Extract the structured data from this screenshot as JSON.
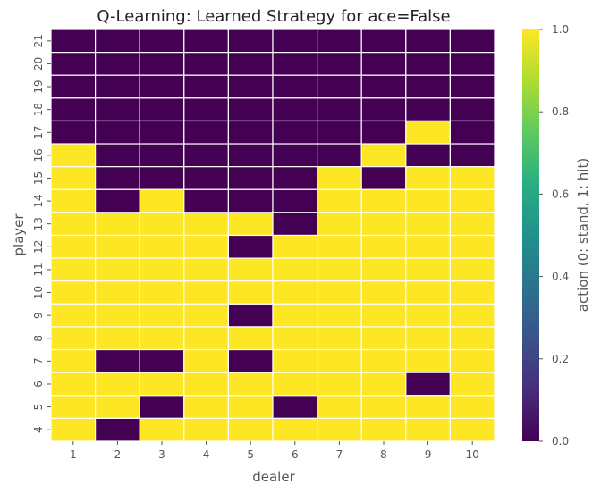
{
  "chart_data": {
    "type": "heatmap",
    "title": "Q-Learning: Learned Strategy for ace=False",
    "xlabel": "dealer",
    "ylabel": "player",
    "colorbar_label": "action (0: stand, 1: hit)",
    "colormap": "viridis",
    "colors": {
      "low": "#440154",
      "high": "#fde725",
      "grid_line": "#ffffff"
    },
    "x": [
      1,
      2,
      3,
      4,
      5,
      6,
      7,
      8,
      9,
      10
    ],
    "y": [
      21,
      20,
      19,
      18,
      17,
      16,
      15,
      14,
      13,
      12,
      11,
      10,
      9,
      8,
      7,
      6,
      5,
      4
    ],
    "values": [
      [
        0,
        0,
        0,
        0,
        0,
        0,
        0,
        0,
        0,
        0
      ],
      [
        0,
        0,
        0,
        0,
        0,
        0,
        0,
        0,
        0,
        0
      ],
      [
        0,
        0,
        0,
        0,
        0,
        0,
        0,
        0,
        0,
        0
      ],
      [
        0,
        0,
        0,
        0,
        0,
        0,
        0,
        0,
        0,
        0
      ],
      [
        0,
        0,
        0,
        0,
        0,
        0,
        0,
        0,
        1,
        0
      ],
      [
        1,
        0,
        0,
        0,
        0,
        0,
        0,
        1,
        0,
        0
      ],
      [
        1,
        0,
        0,
        0,
        0,
        0,
        1,
        0,
        1,
        1
      ],
      [
        1,
        0,
        1,
        0,
        0,
        0,
        1,
        1,
        1,
        1
      ],
      [
        1,
        1,
        1,
        1,
        1,
        0,
        1,
        1,
        1,
        1
      ],
      [
        1,
        1,
        1,
        1,
        0,
        1,
        1,
        1,
        1,
        1
      ],
      [
        1,
        1,
        1,
        1,
        1,
        1,
        1,
        1,
        1,
        1
      ],
      [
        1,
        1,
        1,
        1,
        1,
        1,
        1,
        1,
        1,
        1
      ],
      [
        1,
        1,
        1,
        1,
        0,
        1,
        1,
        1,
        1,
        1
      ],
      [
        1,
        1,
        1,
        1,
        1,
        1,
        1,
        1,
        1,
        1
      ],
      [
        1,
        0,
        0,
        1,
        0,
        1,
        1,
        1,
        1,
        1
      ],
      [
        1,
        1,
        1,
        1,
        1,
        1,
        1,
        1,
        0,
        1
      ],
      [
        1,
        1,
        0,
        1,
        1,
        0,
        1,
        1,
        1,
        1
      ],
      [
        1,
        0,
        1,
        1,
        1,
        1,
        1,
        1,
        1,
        1
      ]
    ],
    "colorbar": {
      "range": [
        0.0,
        1.0
      ],
      "ticks": [
        "0.0",
        "0.2",
        "0.4",
        "0.6",
        "0.8",
        "1.0"
      ]
    },
    "grid": true
  }
}
